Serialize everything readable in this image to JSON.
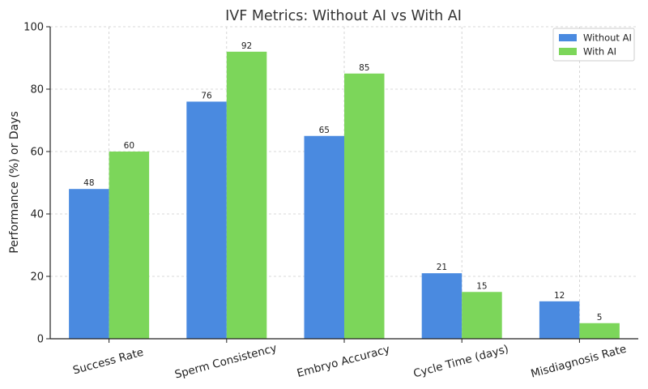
{
  "chart_data": {
    "type": "bar",
    "title": "IVF Metrics: Without AI vs With AI",
    "xlabel": "",
    "ylabel": "Performance (%) or Days",
    "ylim": [
      0,
      100
    ],
    "yticks": [
      "0",
      "20",
      "40",
      "60",
      "80",
      "100"
    ],
    "grid": true,
    "legend_position": "top-right",
    "categories": [
      "Success Rate",
      "Sperm Consistency",
      "Embryo Accuracy",
      "Cycle Time (days)",
      "Misdiagnosis Rate"
    ],
    "series": [
      {
        "name": "Without AI",
        "color": "#4a8ae0",
        "values": [
          48,
          76,
          65,
          21,
          12
        ]
      },
      {
        "name": "With AI",
        "color": "#7cd65a",
        "values": [
          60,
          92,
          85,
          15,
          5
        ]
      }
    ]
  }
}
